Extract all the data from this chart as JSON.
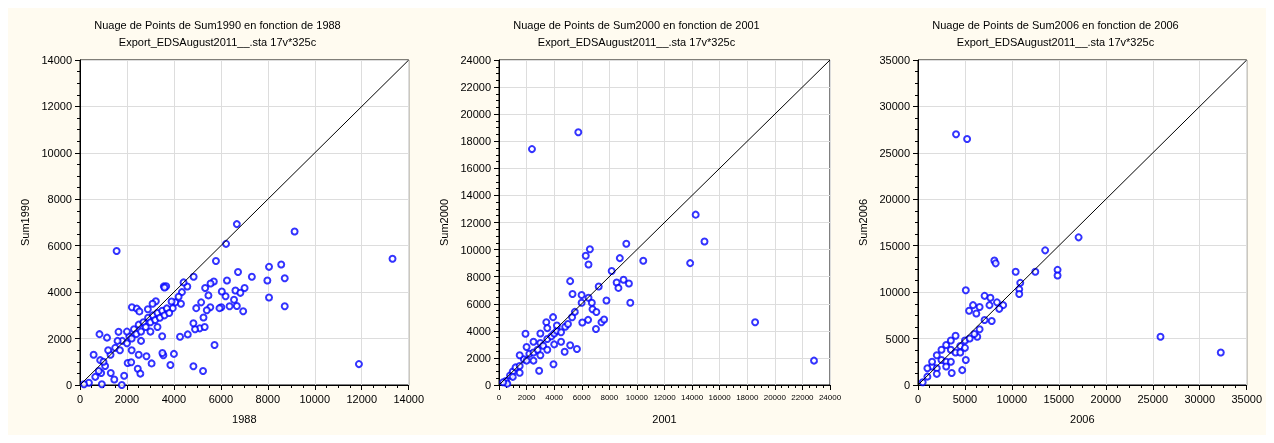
{
  "chart_data": [
    {
      "type": "scatter",
      "title": "Nuage de Points de Sum1990 en fonction de 1988",
      "subtitle": "Export_EDSAugust2011__.sta 17v*325c",
      "xlabel": "1988",
      "ylabel": "Sum1990",
      "xlim": [
        0,
        14000
      ],
      "xticks": [
        0,
        2000,
        4000,
        6000,
        8000,
        10000,
        12000,
        14000
      ],
      "ylim": [
        0,
        14000
      ],
      "yticks": [
        0,
        2000,
        4000,
        6000,
        8000,
        10000,
        12000,
        14000
      ],
      "grid": true,
      "marker": "circle",
      "series": [
        {
          "color": "#0000ff",
          "x": [
            1560,
            6680,
            9140,
            13310,
            6220,
            5790,
            11880,
            8050,
            8570,
            8720,
            7980,
            8050,
            8720,
            7320,
            6730,
            7010,
            6620,
            6830,
            6950,
            6680,
            6370,
            6560,
            6260,
            6200,
            6040,
            6020,
            5940,
            5700,
            5560,
            5330,
            5470,
            5550,
            5400,
            5730,
            4840,
            4830,
            5240,
            3850,
            4000,
            5100,
            5310,
            4900,
            4590,
            4260,
            4830,
            5260,
            5160,
            4950,
            4570,
            4410,
            4340,
            4060,
            3950,
            3570,
            3670,
            3230,
            2210,
            2420,
            2530,
            2890,
            3090,
            1640,
            830,
            580,
            1150,
            860,
            1070,
            1310,
            1460,
            1880,
            1780,
            2460,
            2570,
            2830,
            3050,
            3550,
            3510,
            2030,
            2180,
            380,
            650,
            900,
            170,
            930,
            1300,
            1500,
            1700,
            1800,
            2000,
            2100,
            2200,
            2300,
            2400,
            2500,
            2600,
            2700,
            2800,
            2900,
            3000,
            3100,
            3200,
            3300,
            3400,
            3500,
            3600,
            3700,
            3800,
            3600,
            3900,
            4200,
            4300,
            2000,
            1600,
            1200,
            1000,
            800,
            2600,
            3000,
            3300,
            3500,
            2200,
            2500
          ],
          "values": [
            5770,
            6930,
            6610,
            5440,
            6080,
            5340,
            900,
            5090,
            5190,
            4600,
            4500,
            3770,
            3390,
            4660,
            4870,
            4180,
            4070,
            3970,
            3180,
            3400,
            3390,
            3670,
            4500,
            3820,
            4030,
            3350,
            3310,
            4460,
            4370,
            4180,
            3860,
            3350,
            3220,
            1720,
            4660,
            810,
            600,
            860,
            1340,
            2440,
            2500,
            2400,
            2180,
            2080,
            2660,
            2910,
            3560,
            3310,
            4240,
            4420,
            4000,
            3560,
            3310,
            4250,
            4250,
            3610,
            3350,
            3290,
            3170,
            3260,
            3500,
            2290,
            2190,
            1300,
            2040,
            1070,
            820,
            520,
            240,
            400,
            0,
            700,
            490,
            1240,
            930,
            1280,
            1380,
            950,
            980,
            100,
            350,
            520,
            30,
            30,
            1300,
            1600,
            1500,
            1900,
            1800,
            2100,
            2000,
            2400,
            2200,
            2600,
            2300,
            2700,
            2500,
            2900,
            2700,
            3000,
            2800,
            3100,
            2900,
            3200,
            3000,
            3300,
            3100,
            4200,
            3600,
            3800,
            3500,
            2300,
            1900,
            1500,
            1000,
            600,
            1900,
            2300,
            2500,
            2100,
            1500,
            1300
          ]
        },
        {
          "type": "line",
          "marker": "none",
          "color": "#000000",
          "x": [
            0,
            14000
          ],
          "values": [
            0,
            14000
          ]
        }
      ]
    },
    {
      "type": "scatter",
      "title": "Nuage de Points de Sum2000 en fonction de 2001",
      "subtitle": "Export_EDSAugust2011__.sta 17v*325c",
      "xlabel": "2001",
      "ylabel": "Sum2000",
      "xlim": [
        0,
        24000
      ],
      "xticks": [
        0,
        2000,
        4000,
        6000,
        8000,
        10000,
        12000,
        14000,
        16000,
        18000,
        20000,
        22000,
        24000
      ],
      "ylim": [
        0,
        24000
      ],
      "yticks": [
        0,
        2000,
        4000,
        6000,
        8000,
        10000,
        12000,
        14000,
        16000,
        18000,
        20000,
        22000,
        24000
      ],
      "grid": true,
      "marker": "circle",
      "series": [
        {
          "color": "#0000ff",
          "x": [
            2390,
            5750,
            14260,
            14900,
            13860,
            10460,
            9230,
            8760,
            6590,
            6290,
            6490,
            8170,
            7230,
            5160,
            5330,
            8530,
            9030,
            9420,
            8660,
            9520,
            7790,
            5990,
            5990,
            6490,
            6730,
            6780,
            7060,
            7430,
            7620,
            7030,
            6460,
            6040,
            5650,
            5160,
            3920,
            3430,
            1920,
            18570,
            22840,
            3950,
            2910,
            4760,
            500,
            800,
            1000,
            1200,
            1500,
            1800,
            2000,
            2200,
            2500,
            2800,
            3000,
            3200,
            3500,
            3800,
            4000,
            4200,
            4500,
            4800,
            5000,
            5300,
            5500,
            2500,
            3000,
            3500,
            4000,
            4500,
            1500,
            2000,
            2500,
            3000,
            3500,
            4200,
            1000,
            1500,
            600,
            300
          ],
          "values": [
            17420,
            18670,
            12580,
            10600,
            9000,
            9170,
            10430,
            9370,
            10030,
            9550,
            8900,
            8420,
            7270,
            7670,
            6720,
            7570,
            7770,
            7490,
            7170,
            6070,
            6240,
            6640,
            6070,
            6440,
            6070,
            5590,
            5390,
            4640,
            4840,
            4140,
            4810,
            4610,
            2660,
            2930,
            5010,
            4640,
            3780,
            4640,
            1800,
            1530,
            1050,
            2460,
            300,
            700,
            1000,
            1300,
            1400,
            1900,
            1800,
            2300,
            2400,
            2600,
            3100,
            2900,
            3400,
            3600,
            3800,
            4000,
            3900,
            4300,
            4500,
            5000,
            5400,
            1800,
            2200,
            2600,
            3000,
            3200,
            2200,
            2800,
            3200,
            3800,
            4200,
            4400,
            600,
            900,
            100,
            200
          ]
        },
        {
          "type": "line",
          "marker": "none",
          "color": "#000000",
          "x": [
            0,
            24000
          ],
          "values": [
            0,
            24000
          ]
        }
      ]
    },
    {
      "type": "scatter",
      "title": "Nuage de Points de Sum2006 en fonction de 2006",
      "subtitle": "Export_EDSAugust2011__.sta 17v*325c",
      "xlabel": "2006",
      "ylabel": "Sum2006",
      "xlim": [
        0,
        35000
      ],
      "xticks": [
        0,
        5000,
        10000,
        15000,
        20000,
        25000,
        30000,
        35000
      ],
      "ylim": [
        0,
        35000
      ],
      "yticks": [
        0,
        5000,
        10000,
        15000,
        20000,
        25000,
        30000,
        35000
      ],
      "grid": true,
      "marker": "circle",
      "series": [
        {
          "color": "#0000ff",
          "x": [
            4050,
            5230,
            17100,
            13540,
            8130,
            8270,
            10400,
            12490,
            14860,
            14860,
            10890,
            10780,
            10780,
            5090,
            7090,
            7710,
            8410,
            7610,
            9070,
            8650,
            5860,
            5440,
            6210,
            6560,
            7850,
            7090,
            6560,
            6310,
            25820,
            32240,
            4710,
            5090,
            3590,
            1000,
            1500,
            2000,
            2500,
            3000,
            3500,
            4000,
            4500,
            5000,
            5500,
            2000,
            2500,
            3000,
            3500,
            4000,
            1500,
            3000,
            3500,
            4500,
            5000,
            6000,
            500,
            2000,
            1000
          ],
          "values": [
            27000,
            26500,
            15900,
            14500,
            13400,
            13100,
            12200,
            12200,
            12400,
            11800,
            11000,
            10300,
            9800,
            10200,
            9600,
            9400,
            8900,
            8600,
            8600,
            8200,
            8600,
            8000,
            7700,
            8400,
            6900,
            7000,
            6000,
            5200,
            5200,
            3500,
            1600,
            2700,
            1300,
            900,
            2000,
            1800,
            2700,
            2500,
            3800,
            3500,
            4200,
            4800,
            5000,
            3200,
            3800,
            4300,
            4800,
            5300,
            2500,
            2000,
            2500,
            3500,
            4000,
            5500,
            300,
            1200,
            1800
          ]
        },
        {
          "type": "line",
          "marker": "none",
          "color": "#000000",
          "x": [
            0,
            35000
          ],
          "values": [
            0,
            35000
          ]
        }
      ]
    }
  ]
}
